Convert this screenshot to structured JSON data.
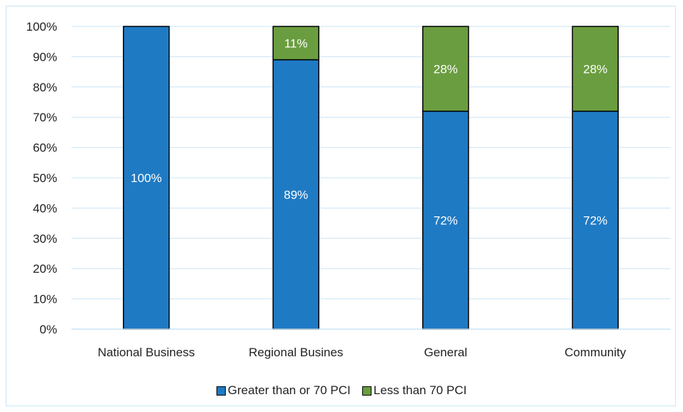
{
  "chart_data": {
    "type": "bar",
    "stacked": true,
    "categories": [
      "National Business",
      "Regional Busines",
      "General",
      "Community"
    ],
    "series": [
      {
        "name": "Greater than or 70 PCI",
        "values": [
          100,
          89,
          72,
          72
        ],
        "labels": [
          "100%",
          "89%",
          "72%",
          "72%"
        ],
        "color": "#1f7ac4"
      },
      {
        "name": "Less than 70 PCI",
        "values": [
          0,
          11,
          28,
          28
        ],
        "labels": [
          "",
          "11%",
          "28%",
          "28%"
        ],
        "color": "#6a9d3f"
      }
    ],
    "yticks": [
      "0%",
      "10%",
      "20%",
      "30%",
      "40%",
      "50%",
      "60%",
      "70%",
      "80%",
      "90%",
      "100%"
    ],
    "ylim": [
      0,
      100
    ],
    "grid": true,
    "legend_position": "bottom"
  }
}
